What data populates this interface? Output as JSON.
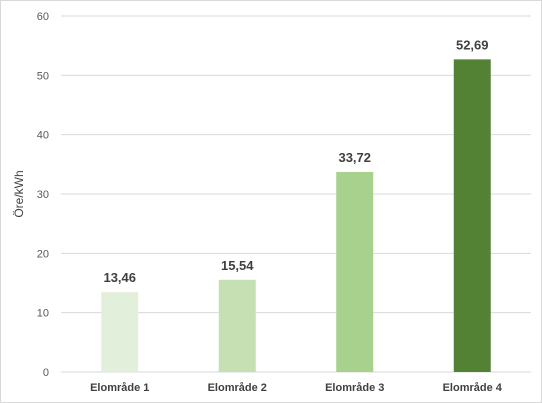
{
  "chart_data": {
    "type": "bar",
    "categories": [
      "Elområde 1",
      "Elområde 2",
      "Elområde 3",
      "Elområde 4"
    ],
    "values": [
      13.46,
      15.54,
      33.72,
      52.69
    ],
    "data_labels": [
      "13,46",
      "15,54",
      "33,72",
      "52,69"
    ],
    "colors": [
      "#e2efda",
      "#c6e0b4",
      "#a9d18e",
      "#548235"
    ],
    "title": "",
    "xlabel": "",
    "ylabel": "Öre/kWh",
    "ylim": [
      0,
      60
    ],
    "yticks": [
      0,
      10,
      20,
      30,
      40,
      50,
      60
    ],
    "grid": true,
    "legend": "none"
  }
}
